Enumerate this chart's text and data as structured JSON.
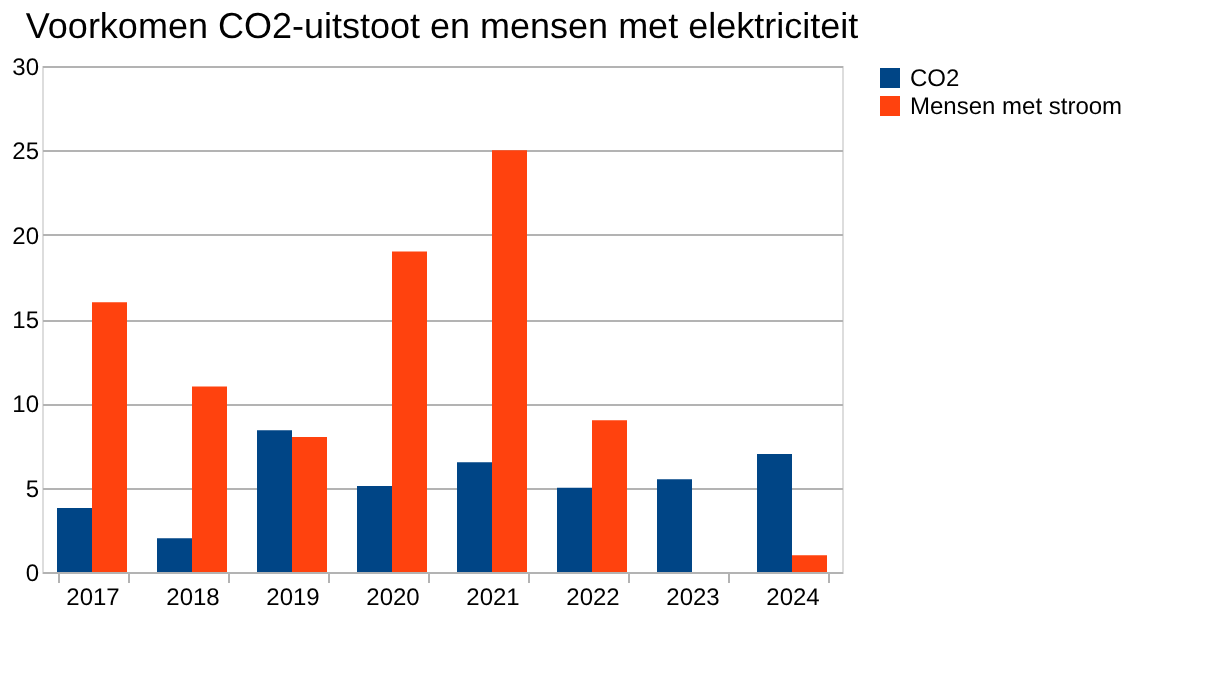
{
  "chart_data": {
    "type": "bar",
    "title": "Voorkomen CO2-uitstoot en mensen met elektriciteit",
    "categories": [
      "2017",
      "2018",
      "2019",
      "2020",
      "2021",
      "2022",
      "2023",
      "2024"
    ],
    "series": [
      {
        "name": "CO2",
        "color": "#004586",
        "values": [
          3.8,
          2.0,
          8.4,
          5.1,
          6.5,
          5.0,
          5.5,
          7.0
        ]
      },
      {
        "name": "Mensen met stroom",
        "color": "#ff420e",
        "values": [
          16,
          11,
          8,
          19,
          25,
          9,
          null,
          1
        ]
      }
    ],
    "ylim": [
      0,
      30
    ],
    "yticks": [
      0,
      5,
      10,
      15,
      20,
      25,
      30
    ],
    "grid": "y",
    "legend": "right"
  }
}
